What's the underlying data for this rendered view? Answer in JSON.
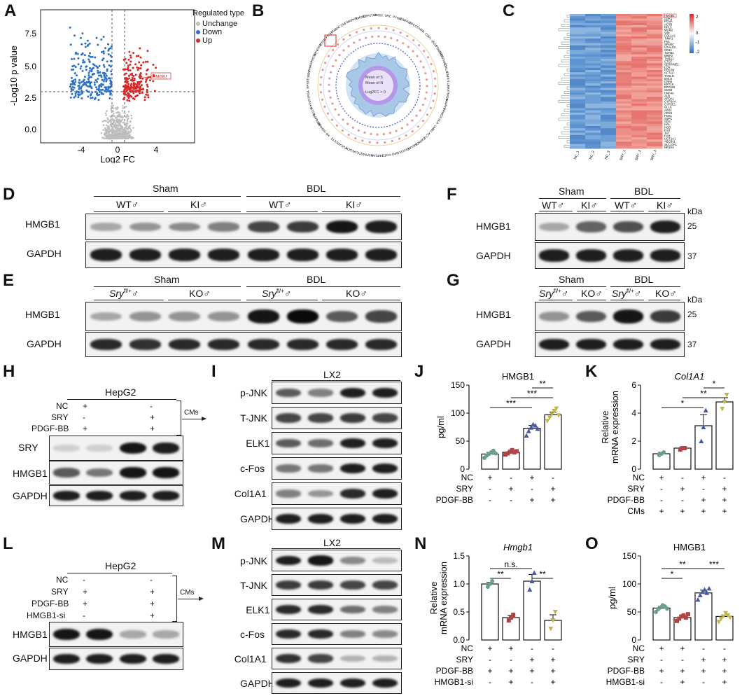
{
  "letters": [
    "A",
    "B",
    "C",
    "D",
    "E",
    "F",
    "G",
    "H",
    "I",
    "J",
    "K",
    "L",
    "M",
    "N",
    "O"
  ],
  "colors": {
    "up": "#d42a2a",
    "down": "#2f72c4",
    "unchange": "#bdbdbd",
    "heat_hi": "#e9837d",
    "heat_lo": "#6c9fd6",
    "bar_nc": "#6a9f8f",
    "bar_sry": "#b04545",
    "bar_pdgf": "#4a5aa0",
    "bar_all": "#c2b64a"
  },
  "panelA": {
    "title": "Regulated type",
    "legend": [
      "Unchange",
      "Down",
      "Up"
    ],
    "xlabel": "Log2 FC",
    "ylabel": "-Log10 p value",
    "yticks": [
      "7.5",
      "5.0",
      "2.5",
      "0.0"
    ],
    "xticks": [
      "-4",
      "0",
      "4"
    ],
    "gene": "HMGB1"
  },
  "panelB": {
    "legend": [
      "Mean of S",
      "Mean of N",
      "Log2FC > 0"
    ],
    "genes": [
      "HMGB1",
      "CYP27A1",
      "PKD2",
      "SRC",
      "PYGB",
      "EMPH1",
      "XRCC5",
      "HPR",
      "CSF1",
      "JAG1",
      "PSMD13",
      "SERPINA3",
      "CHIL2",
      "ENPP1",
      "UBB",
      "PTPRB",
      "MAPK1",
      "PRMD3",
      "SLA",
      "LMB1",
      "ACY1",
      "CAPN2L",
      "ANXA8",
      "DDX3X",
      "MPO",
      "FGF2",
      "EEF1A1",
      "HSPA4",
      "STK1",
      "ALDOA",
      "FUCA2",
      "CCT2",
      "HP",
      "HSPA5B",
      "ATP6AP2",
      "GCLM",
      "CYP2F1",
      "FGA",
      "EPS8",
      "TUBB2",
      "DHRS7",
      "PRDX6",
      "SYNCRIP",
      "ETFB",
      "PTGB",
      "RAB5C",
      "CNP",
      "MAPK3"
    ]
  },
  "panelC": {
    "genes": [
      "HMGB1",
      "CDK1",
      "PCNA",
      "ACTB",
      "RPL3",
      "MCM2",
      "VIM",
      "COL1A1",
      "TIMP1",
      "FN1",
      "SPARC",
      "LGALS3",
      "CD44",
      "TGFB1",
      "MMP2",
      "THBS1",
      "CTGF",
      "SERPINE1",
      "LOX",
      "POSTN",
      "ACTA2",
      "TAGLN",
      "MYL9",
      "CNN1",
      "KRT19",
      "EPCAM",
      "SOX9",
      "HNF4A",
      "ALB",
      "APOA1",
      "CYP3A4",
      "CYP2E1",
      "GLUL",
      "ASS1",
      "ARG1",
      "PCK1",
      "G6PC",
      "SDS",
      "HAL",
      "HGD",
      "FAH",
      "TAT",
      "PAH",
      "UGT1A1",
      "ABCB11",
      "SLC10A1",
      "NR1H4"
    ],
    "samples": [
      "NC_1",
      "NC_2",
      "NC_3",
      "SRY_1",
      "SRY_2",
      "SRY_3"
    ],
    "scale": [
      "2",
      "0",
      "-1",
      "-2"
    ]
  },
  "panelD": {
    "groups": [
      "Sham",
      "BDL"
    ],
    "sub": [
      "WT♂",
      "KI♂",
      "WT♂",
      "KI♂"
    ],
    "rows": [
      "HMGB1",
      "GAPDH"
    ]
  },
  "panelE": {
    "groups": [
      "Sham",
      "BDL"
    ],
    "sub_a": "Sry",
    "sub_a_sup": "fl/+",
    "sub_a_sym": "♂",
    "sub_b": "KO♂",
    "rows": [
      "HMGB1",
      "GAPDH"
    ]
  },
  "panelF": {
    "groups": [
      "Sham",
      "BDL"
    ],
    "sub": [
      "WT♂",
      "KI♂",
      "WT♂",
      "KI♂"
    ],
    "rows": [
      "HMGB1",
      "GAPDH"
    ],
    "kda_label": "kDa",
    "kda": [
      "25",
      "37"
    ]
  },
  "panelG": {
    "groups": [
      "Sham",
      "BDL"
    ],
    "sub_a": "Sry",
    "sub_a_sup": "fl/+",
    "sub_a_sym": "♂",
    "sub_b": "KO♂",
    "rows": [
      "HMGB1",
      "GAPDH"
    ],
    "kda_label": "kDa",
    "kda": [
      "25",
      "37"
    ]
  },
  "panelH": {
    "cell": "HepG2",
    "conds": [
      "NC",
      "SRY",
      "PDGF-BB"
    ],
    "signs": [
      [
        "+",
        "",
        "-",
        ""
      ],
      [
        "-",
        "",
        "+",
        ""
      ],
      [
        "+",
        "",
        "+",
        ""
      ]
    ],
    "rows": [
      "SRY",
      "HMGB1",
      "GAPDH"
    ],
    "cms": "CMs"
  },
  "panelI": {
    "cell": "LX2",
    "rows": [
      "p-JNK",
      "T-JNK",
      "ELK1",
      "c-Fos",
      "Col1A1",
      "GAPDH"
    ]
  },
  "panelL": {
    "cell": "HepG2",
    "conds": [
      "NC",
      "SRY",
      "PDGF-BB",
      "HMGB1-si"
    ],
    "signs": [
      [
        "-",
        "",
        "-",
        ""
      ],
      [
        "+",
        "",
        "+",
        ""
      ],
      [
        "+",
        "",
        "+",
        ""
      ],
      [
        "-",
        "",
        "+",
        ""
      ]
    ],
    "rows": [
      "HMGB1",
      "GAPDH"
    ],
    "cms": "CMs"
  },
  "panelM": {
    "cell": "LX2",
    "rows": [
      "p-JNK",
      "T-JNK",
      "ELK1",
      "c-Fos",
      "Col1A1",
      "GAPDH"
    ]
  },
  "chart_data": [
    {
      "id": "J",
      "type": "bar",
      "title": "HMGB1",
      "ylabel": "pg/ml",
      "ylim": [
        0,
        150
      ],
      "yticks": [
        0,
        50,
        100,
        150
      ],
      "categories": [
        "NC",
        "SRY",
        "PDGF-BB",
        "SRY+PDGF-BB"
      ],
      "values": [
        27,
        30,
        73,
        97
      ],
      "points": [
        [
          20,
          24,
          27,
          30,
          33,
          28
        ],
        [
          26,
          28,
          31,
          34,
          30,
          32
        ],
        [
          60,
          68,
          74,
          80,
          78,
          72
        ],
        [
          86,
          92,
          98,
          104,
          108,
          96
        ]
      ],
      "errors": [
        3,
        2,
        5,
        5
      ],
      "conds": [
        "NC",
        "SRY",
        "PDGF-BB"
      ],
      "signs": [
        [
          "+",
          "-",
          "+",
          "-"
        ],
        [
          "-",
          "+",
          "-",
          "+"
        ],
        [
          "-",
          "-",
          "+",
          "+"
        ]
      ],
      "sig": [
        {
          "from": 0,
          "to": 2,
          "label": "***",
          "level": 1
        },
        {
          "from": 1,
          "to": 3,
          "label": "***",
          "level": 2
        },
        {
          "from": 2,
          "to": 3,
          "label": "**",
          "level": 3
        }
      ]
    },
    {
      "id": "K",
      "type": "bar",
      "title": "Col1A1",
      "ylabel": "Relative mRNA expression",
      "ylim": [
        0,
        6
      ],
      "yticks": [
        0,
        2,
        4,
        6
      ],
      "categories": [
        "NC",
        "SRY",
        "PDGF-BB",
        "SRY+PDGF-BB"
      ],
      "values": [
        1.1,
        1.5,
        3.1,
        4.8
      ],
      "points": [
        [
          1.0,
          1.1,
          1.2
        ],
        [
          1.4,
          1.5,
          1.5
        ],
        [
          2.0,
          3.0,
          4.2
        ],
        [
          4.3,
          4.8,
          5.3
        ]
      ],
      "errors": [
        0.1,
        0.05,
        0.8,
        0.3
      ],
      "conds": [
        "NC",
        "SRY",
        "PDGF-BB",
        "CMs"
      ],
      "signs": [
        [
          "+",
          "-",
          "+",
          "-"
        ],
        [
          "-",
          "+",
          "-",
          "+"
        ],
        [
          "-",
          "-",
          "+",
          "+"
        ],
        [
          "+",
          "+",
          "+",
          "+"
        ]
      ],
      "sig": [
        {
          "from": 0,
          "to": 2,
          "label": "*",
          "level": 1
        },
        {
          "from": 1,
          "to": 3,
          "label": "**",
          "level": 2
        },
        {
          "from": 2,
          "to": 3,
          "label": "*",
          "level": 3
        }
      ]
    },
    {
      "id": "N",
      "type": "bar",
      "title": "Hmgb1",
      "ylabel": "Relative mRNA expression",
      "ylim": [
        0,
        1.5
      ],
      "yticks": [
        0.0,
        0.5,
        1.0,
        1.5
      ],
      "categories": [
        "NC",
        "NC+si",
        "SRY",
        "SRY+si"
      ],
      "values": [
        1.0,
        0.4,
        1.05,
        0.35
      ],
      "points": [
        [
          0.95,
          1.0,
          1.05
        ],
        [
          0.35,
          0.4,
          0.45
        ],
        [
          0.9,
          1.05,
          1.2
        ],
        [
          0.2,
          0.35,
          0.5
        ]
      ],
      "errors": [
        0.03,
        0.04,
        0.12,
        0.1
      ],
      "conds": [
        "NC",
        "SRY",
        "PDGF-BB",
        "HMGB1-si"
      ],
      "signs": [
        [
          "+",
          "+",
          "-",
          "-"
        ],
        [
          "-",
          "-",
          "+",
          "+"
        ],
        [
          "+",
          "+",
          "+",
          "+"
        ],
        [
          "-",
          "+",
          "-",
          "+"
        ]
      ],
      "sig": [
        {
          "from": 0,
          "to": 1,
          "label": "**",
          "level": 1
        },
        {
          "from": 0,
          "to": 2,
          "label": "n.s.",
          "level": 2
        },
        {
          "from": 2,
          "to": 3,
          "label": "**",
          "level": 1
        }
      ]
    },
    {
      "id": "O",
      "type": "bar",
      "title": "HMGB1",
      "ylabel": "pg/ml",
      "ylim": [
        0,
        150
      ],
      "yticks": [
        0,
        50,
        100,
        150
      ],
      "categories": [
        "NC",
        "NC+si",
        "SRY",
        "SRY+si"
      ],
      "values": [
        57,
        40,
        84,
        42
      ],
      "points": [
        [
          50,
          55,
          58,
          62,
          60,
          56
        ],
        [
          34,
          38,
          42,
          44,
          40,
          46
        ],
        [
          72,
          80,
          86,
          90,
          84,
          92
        ],
        [
          32,
          38,
          42,
          48,
          44,
          40
        ]
      ],
      "errors": [
        3,
        3,
        5,
        3
      ],
      "conds": [
        "NC",
        "SRY",
        "PDGF-BB",
        "HMGB1-si"
      ],
      "signs": [
        [
          "+",
          "+",
          "-",
          "-"
        ],
        [
          "-",
          "-",
          "+",
          "+"
        ],
        [
          "+",
          "+",
          "+",
          "+"
        ],
        [
          "-",
          "+",
          "-",
          "+"
        ]
      ],
      "sig": [
        {
          "from": 0,
          "to": 1,
          "label": "*",
          "level": 1
        },
        {
          "from": 0,
          "to": 2,
          "label": "**",
          "level": 2
        },
        {
          "from": 2,
          "to": 3,
          "label": "***",
          "level": 2
        }
      ]
    }
  ]
}
